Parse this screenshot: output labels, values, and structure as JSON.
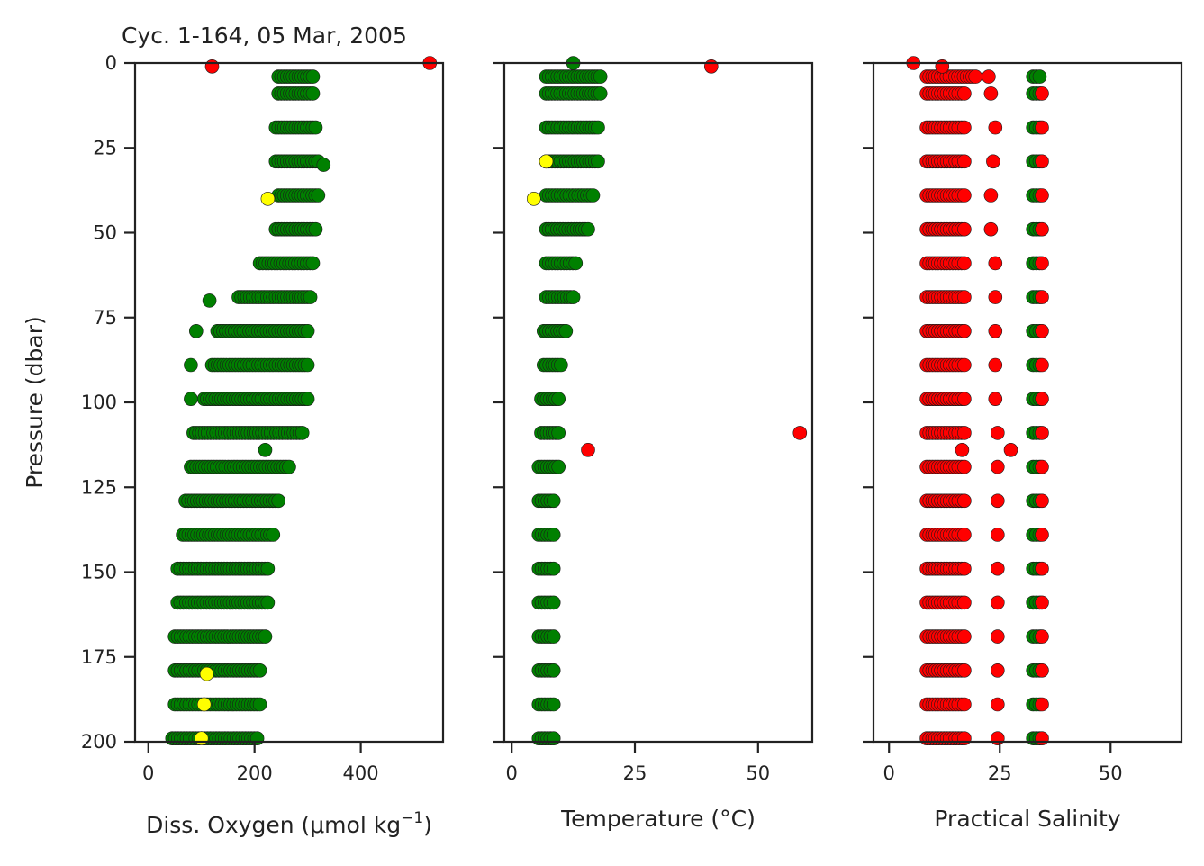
{
  "chart_data": {
    "type": "scatter",
    "title": "Cyc. 1-164, 05 Mar, 2005",
    "ylabel": "Pressure (dbar)",
    "ylim": [
      0,
      200
    ],
    "y_inverted": true,
    "yticks": [
      0,
      25,
      50,
      75,
      100,
      125,
      150,
      175,
      200
    ],
    "ytick_labels": [
      "0",
      "25",
      "50",
      "75",
      "100",
      "125",
      "150",
      "175",
      "200"
    ],
    "shared_y": true,
    "grid": false,
    "legend": "none",
    "quality_colors": {
      "good": "#008000",
      "probably_bad": "#ffff00",
      "bad": "#ff0000"
    },
    "panels": [
      {
        "xlabel_main": "Diss. Oxygen (μmol kg",
        "xlabel_sup": "−1",
        "xlabel_tail": ")",
        "xlim": [
          -25,
          555
        ],
        "xticks": [
          0,
          200,
          400
        ],
        "xtick_labels": [
          "0",
          "200",
          "400"
        ],
        "bands": [
          {
            "p": 4,
            "ranges": [
              [
                245,
                310
              ]
            ]
          },
          {
            "p": 9,
            "ranges": [
              [
                245,
                310
              ]
            ]
          },
          {
            "p": 19,
            "ranges": [
              [
                240,
                315
              ]
            ]
          },
          {
            "p": 29,
            "ranges": [
              [
                240,
                320
              ]
            ]
          },
          {
            "p": 39,
            "ranges": [
              [
                245,
                320
              ]
            ]
          },
          {
            "p": 49,
            "ranges": [
              [
                240,
                315
              ]
            ]
          },
          {
            "p": 59,
            "ranges": [
              [
                210,
                310
              ]
            ]
          },
          {
            "p": 69,
            "ranges": [
              [
                170,
                305
              ]
            ]
          },
          {
            "p": 79,
            "ranges": [
              [
                130,
                300
              ]
            ]
          },
          {
            "p": 89,
            "ranges": [
              [
                120,
                300
              ]
            ]
          },
          {
            "p": 99,
            "ranges": [
              [
                105,
                300
              ]
            ]
          },
          {
            "p": 109,
            "ranges": [
              [
                85,
                290
              ]
            ]
          },
          {
            "p": 119,
            "ranges": [
              [
                80,
                265
              ]
            ]
          },
          {
            "p": 129,
            "ranges": [
              [
                70,
                245
              ]
            ]
          },
          {
            "p": 139,
            "ranges": [
              [
                65,
                235
              ]
            ]
          },
          {
            "p": 149,
            "ranges": [
              [
                55,
                225
              ]
            ]
          },
          {
            "p": 159,
            "ranges": [
              [
                55,
                225
              ]
            ]
          },
          {
            "p": 169,
            "ranges": [
              [
                50,
                220
              ]
            ]
          },
          {
            "p": 179,
            "ranges": [
              [
                50,
                210
              ]
            ]
          },
          {
            "p": 189,
            "ranges": [
              [
                50,
                210
              ]
            ]
          },
          {
            "p": 199,
            "ranges": [
              [
                45,
                205
              ]
            ]
          }
        ],
        "good_points": [
          [
            330,
            30
          ],
          [
            115,
            70
          ],
          [
            90,
            79
          ],
          [
            80,
            89
          ],
          [
            80,
            99
          ],
          [
            220,
            114
          ]
        ],
        "probably_bad_points": [
          [
            225,
            40
          ],
          [
            110,
            180
          ],
          [
            105,
            189
          ],
          [
            100,
            199
          ]
        ],
        "bad_points": [
          [
            120,
            1
          ],
          [
            530,
            0
          ]
        ]
      },
      {
        "xlabel_main": "Temperature (°C)",
        "xlabel_sup": "",
        "xlabel_tail": "",
        "xlim": [
          -1.5,
          61
        ],
        "xticks": [
          0,
          25,
          50
        ],
        "xtick_labels": [
          "0",
          "25",
          "50"
        ],
        "bands": [
          {
            "p": 4,
            "ranges": [
              [
                7,
                18
              ]
            ]
          },
          {
            "p": 9,
            "ranges": [
              [
                7,
                18
              ]
            ]
          },
          {
            "p": 19,
            "ranges": [
              [
                7,
                17.5
              ]
            ]
          },
          {
            "p": 29,
            "ranges": [
              [
                7,
                17.5
              ]
            ]
          },
          {
            "p": 39,
            "ranges": [
              [
                7,
                16.5
              ]
            ]
          },
          {
            "p": 49,
            "ranges": [
              [
                7,
                15.5
              ]
            ]
          },
          {
            "p": 59,
            "ranges": [
              [
                7,
                13
              ]
            ]
          },
          {
            "p": 69,
            "ranges": [
              [
                7,
                12.5
              ]
            ]
          },
          {
            "p": 79,
            "ranges": [
              [
                6.5,
                11
              ]
            ]
          },
          {
            "p": 89,
            "ranges": [
              [
                6.5,
                10
              ]
            ]
          },
          {
            "p": 99,
            "ranges": [
              [
                6,
                9.5
              ]
            ]
          },
          {
            "p": 109,
            "ranges": [
              [
                6,
                9.5
              ]
            ]
          },
          {
            "p": 119,
            "ranges": [
              [
                5.5,
                9.5
              ]
            ]
          },
          {
            "p": 129,
            "ranges": [
              [
                5.5,
                8.5
              ]
            ]
          },
          {
            "p": 139,
            "ranges": [
              [
                5.5,
                8.5
              ]
            ]
          },
          {
            "p": 149,
            "ranges": [
              [
                5.5,
                8.5
              ]
            ]
          },
          {
            "p": 159,
            "ranges": [
              [
                5.5,
                8.5
              ]
            ]
          },
          {
            "p": 169,
            "ranges": [
              [
                5.5,
                8.5
              ]
            ]
          },
          {
            "p": 179,
            "ranges": [
              [
                5.5,
                8.5
              ]
            ]
          },
          {
            "p": 189,
            "ranges": [
              [
                5.5,
                8.5
              ]
            ]
          },
          {
            "p": 199,
            "ranges": [
              [
                5.5,
                8.5
              ]
            ]
          }
        ],
        "good_points": [
          [
            12.5,
            0
          ]
        ],
        "probably_bad_points": [
          [
            4.5,
            40
          ],
          [
            7,
            29
          ]
        ],
        "bad_points": [
          [
            40.5,
            1
          ],
          [
            15.5,
            114
          ],
          [
            58.5,
            109
          ]
        ]
      },
      {
        "xlabel_main": "Practical Salinity",
        "xlabel_sup": "",
        "xlabel_tail": "",
        "xlim": [
          -3.5,
          66
        ],
        "xticks": [
          0,
          25,
          50
        ],
        "xtick_labels": [
          "0",
          "25",
          "50"
        ],
        "bands": [
          {
            "p": 4,
            "ranges": [
              [
                32.5,
                34
              ]
            ]
          },
          {
            "p": 9,
            "ranges": [
              [
                32.5,
                34
              ]
            ]
          },
          {
            "p": 19,
            "ranges": [
              [
                32.5,
                34
              ]
            ]
          },
          {
            "p": 29,
            "ranges": [
              [
                32.5,
                34
              ]
            ]
          },
          {
            "p": 39,
            "ranges": [
              [
                32.5,
                34
              ]
            ]
          },
          {
            "p": 49,
            "ranges": [
              [
                32.5,
                34
              ]
            ]
          },
          {
            "p": 59,
            "ranges": [
              [
                32.5,
                34
              ]
            ]
          },
          {
            "p": 69,
            "ranges": [
              [
                32.5,
                34
              ]
            ]
          },
          {
            "p": 79,
            "ranges": [
              [
                32.5,
                34
              ]
            ]
          },
          {
            "p": 89,
            "ranges": [
              [
                32.5,
                34
              ]
            ]
          },
          {
            "p": 99,
            "ranges": [
              [
                32.5,
                34
              ]
            ]
          },
          {
            "p": 109,
            "ranges": [
              [
                32.5,
                34
              ]
            ]
          },
          {
            "p": 119,
            "ranges": [
              [
                32.5,
                34
              ]
            ]
          },
          {
            "p": 129,
            "ranges": [
              [
                32.5,
                34
              ]
            ]
          },
          {
            "p": 139,
            "ranges": [
              [
                32.5,
                34
              ]
            ]
          },
          {
            "p": 149,
            "ranges": [
              [
                32.5,
                34
              ]
            ]
          },
          {
            "p": 159,
            "ranges": [
              [
                32.5,
                34
              ]
            ]
          },
          {
            "p": 169,
            "ranges": [
              [
                32.5,
                34
              ]
            ]
          },
          {
            "p": 179,
            "ranges": [
              [
                32.5,
                34
              ]
            ]
          },
          {
            "p": 189,
            "ranges": [
              [
                32.5,
                34
              ]
            ]
          },
          {
            "p": 199,
            "ranges": [
              [
                32.5,
                34
              ]
            ]
          }
        ],
        "bad_bands": [
          {
            "p": 4,
            "ranges": [
              [
                8.5,
                19.5
              ]
            ]
          },
          {
            "p": 9,
            "ranges": [
              [
                8.5,
                17
              ]
            ]
          },
          {
            "p": 19,
            "ranges": [
              [
                8.5,
                17
              ]
            ]
          },
          {
            "p": 29,
            "ranges": [
              [
                8.5,
                17
              ]
            ]
          },
          {
            "p": 39,
            "ranges": [
              [
                8.5,
                17
              ]
            ]
          },
          {
            "p": 49,
            "ranges": [
              [
                8.5,
                17
              ]
            ]
          },
          {
            "p": 59,
            "ranges": [
              [
                8.5,
                17
              ]
            ]
          },
          {
            "p": 69,
            "ranges": [
              [
                8.5,
                17
              ]
            ]
          },
          {
            "p": 79,
            "ranges": [
              [
                8.5,
                17
              ]
            ]
          },
          {
            "p": 89,
            "ranges": [
              [
                8.5,
                17
              ]
            ]
          },
          {
            "p": 99,
            "ranges": [
              [
                8.5,
                17
              ]
            ]
          },
          {
            "p": 109,
            "ranges": [
              [
                8.5,
                17
              ]
            ]
          },
          {
            "p": 119,
            "ranges": [
              [
                8.5,
                17
              ]
            ]
          },
          {
            "p": 129,
            "ranges": [
              [
                8.5,
                17
              ]
            ]
          },
          {
            "p": 139,
            "ranges": [
              [
                8.5,
                17
              ]
            ]
          },
          {
            "p": 149,
            "ranges": [
              [
                8.5,
                17
              ]
            ]
          },
          {
            "p": 159,
            "ranges": [
              [
                8.5,
                17
              ]
            ]
          },
          {
            "p": 169,
            "ranges": [
              [
                8.5,
                17
              ]
            ]
          },
          {
            "p": 179,
            "ranges": [
              [
                8.5,
                17
              ]
            ]
          },
          {
            "p": 189,
            "ranges": [
              [
                8.5,
                17
              ]
            ]
          },
          {
            "p": 199,
            "ranges": [
              [
                8.5,
                17
              ]
            ]
          }
        ],
        "good_points": [],
        "probably_bad_points": [],
        "bad_points": [
          [
            5.5,
            0
          ],
          [
            12,
            1
          ],
          [
            22.5,
            4
          ],
          [
            23,
            9
          ],
          [
            24,
            19
          ],
          [
            23.5,
            29
          ],
          [
            23,
            39
          ],
          [
            23,
            49
          ],
          [
            24,
            59
          ],
          [
            24,
            69
          ],
          [
            24,
            79
          ],
          [
            24,
            89
          ],
          [
            24,
            99
          ],
          [
            24.5,
            109
          ],
          [
            24.5,
            119
          ],
          [
            24.5,
            129
          ],
          [
            24.5,
            139
          ],
          [
            24.5,
            149
          ],
          [
            24.5,
            159
          ],
          [
            24.5,
            169
          ],
          [
            24.5,
            179
          ],
          [
            24.5,
            189
          ],
          [
            24.5,
            199
          ],
          [
            34.5,
            9
          ],
          [
            34.5,
            19
          ],
          [
            34.5,
            29
          ],
          [
            34.5,
            39
          ],
          [
            34.5,
            49
          ],
          [
            34.5,
            59
          ],
          [
            34.5,
            69
          ],
          [
            34.5,
            79
          ],
          [
            34.5,
            89
          ],
          [
            34.5,
            99
          ],
          [
            34.5,
            109
          ],
          [
            34.5,
            119
          ],
          [
            34.5,
            129
          ],
          [
            34.5,
            139
          ],
          [
            34.5,
            149
          ],
          [
            34.5,
            159
          ],
          [
            34.5,
            169
          ],
          [
            34.5,
            179
          ],
          [
            34.5,
            189
          ],
          [
            34.5,
            199
          ],
          [
            27.5,
            114
          ],
          [
            16.5,
            114
          ]
        ]
      }
    ]
  }
}
